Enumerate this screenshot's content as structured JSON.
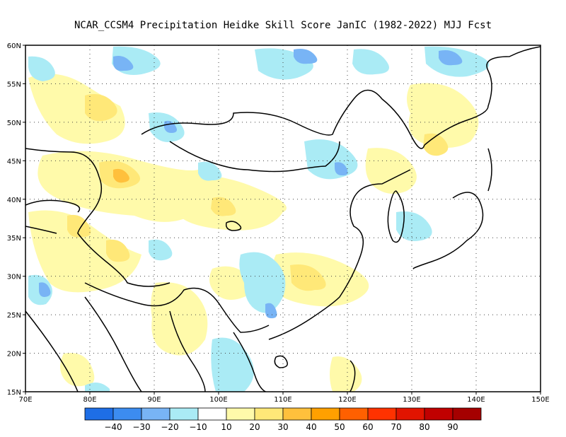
{
  "title": "NCAR_CCSM4  Precipitation Heidke Skill Score JanIC (1982-2022) MJJ Fcst",
  "map": {
    "lon_range": [
      70,
      150
    ],
    "lat_range": [
      15,
      60
    ],
    "grid": "dotted",
    "x_ticks": [
      "70E",
      "80E",
      "90E",
      "100E",
      "110E",
      "120E",
      "130E",
      "140E",
      "150E"
    ],
    "y_ticks": [
      "15N",
      "20N",
      "25N",
      "30N",
      "35N",
      "40N",
      "45N",
      "50N",
      "55N",
      "60N"
    ]
  },
  "colorbar": {
    "labels": [
      "−40",
      "−30",
      "−20",
      "−10",
      "10",
      "20",
      "30",
      "40",
      "50",
      "60",
      "70",
      "80",
      "90"
    ],
    "colors": [
      "#1e6ee6",
      "#3c8cf0",
      "#78b4f5",
      "#aaebf5",
      "#ffffff",
      "#fffaaa",
      "#ffe878",
      "#ffc03c",
      "#ffa000",
      "#ff6000",
      "#ff3200",
      "#e11400",
      "#c00000",
      "#a50000"
    ]
  }
}
